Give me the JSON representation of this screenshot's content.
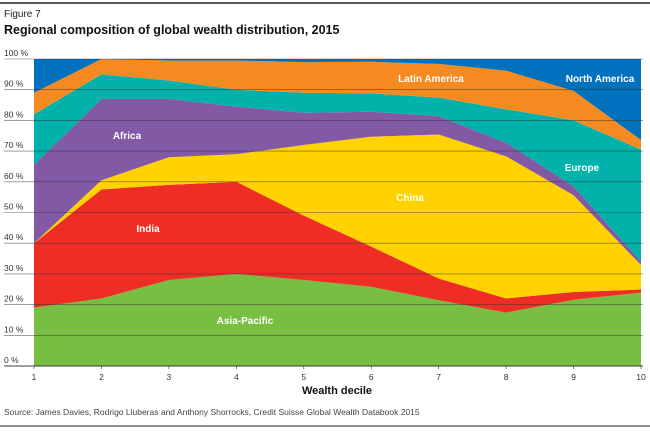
{
  "figure_label": "Figure 7",
  "source": "Source: James Davies, Rodrigo Lluberas and Anthony Shorrocks, Credit Suisse Global Wealth Databook 2015",
  "chart_data": {
    "type": "area",
    "stacked": true,
    "title": "Regional composition of global wealth distribution, 2015",
    "xlabel": "Wealth decile",
    "ylabel": "",
    "x": [
      1,
      2,
      3,
      4,
      5,
      6,
      7,
      8,
      9,
      10
    ],
    "xtick_labels": [
      "1",
      "2",
      "3",
      "4",
      "5",
      "6",
      "7",
      "8",
      "9",
      "10"
    ],
    "ylim": [
      0,
      100
    ],
    "ytick_labels": [
      "0 %",
      "10 %",
      "20 %",
      "30 %",
      "40 %",
      "50 %",
      "60 %",
      "70 %",
      "80 %",
      "90 %",
      "100 %"
    ],
    "grid": true,
    "legend": "inline labels",
    "series": [
      {
        "name": "Asia-Pacific",
        "color": "#78be43",
        "values": [
          19,
          22,
          28,
          30,
          28,
          25.8,
          21.4,
          17.4,
          21.6,
          23.9
        ]
      },
      {
        "name": "India",
        "color": "#ee2e24",
        "values": [
          21,
          35.5,
          31,
          30,
          21,
          13.1,
          7.1,
          4.6,
          2.5,
          1.0
        ]
      },
      {
        "name": "China",
        "color": "#ffd200",
        "values": [
          0,
          3,
          9,
          9,
          23,
          35.8,
          46.9,
          46.3,
          31.5,
          8.0
        ]
      },
      {
        "name": "Africa",
        "color": "#8159a4",
        "values": [
          25.5,
          26.5,
          19,
          15.5,
          10.5,
          8.1,
          6,
          4.4,
          2.9,
          1.1
        ]
      },
      {
        "name": "Europe",
        "color": "#00b2a9",
        "values": [
          16.5,
          8,
          6,
          5.5,
          6.5,
          6,
          6,
          10.9,
          21.5,
          36.5
        ]
      },
      {
        "name": "Latin America",
        "color": "#f58b20",
        "values": [
          7,
          5,
          6.5,
          9.5,
          10,
          10.3,
          11,
          12.6,
          9.6,
          3.1
        ]
      },
      {
        "name": "North America",
        "color": "#0071bc",
        "values": [
          11,
          0,
          0.5,
          0.5,
          1,
          0.9,
          1.6,
          3.8,
          10.4,
          26.4
        ]
      }
    ]
  }
}
